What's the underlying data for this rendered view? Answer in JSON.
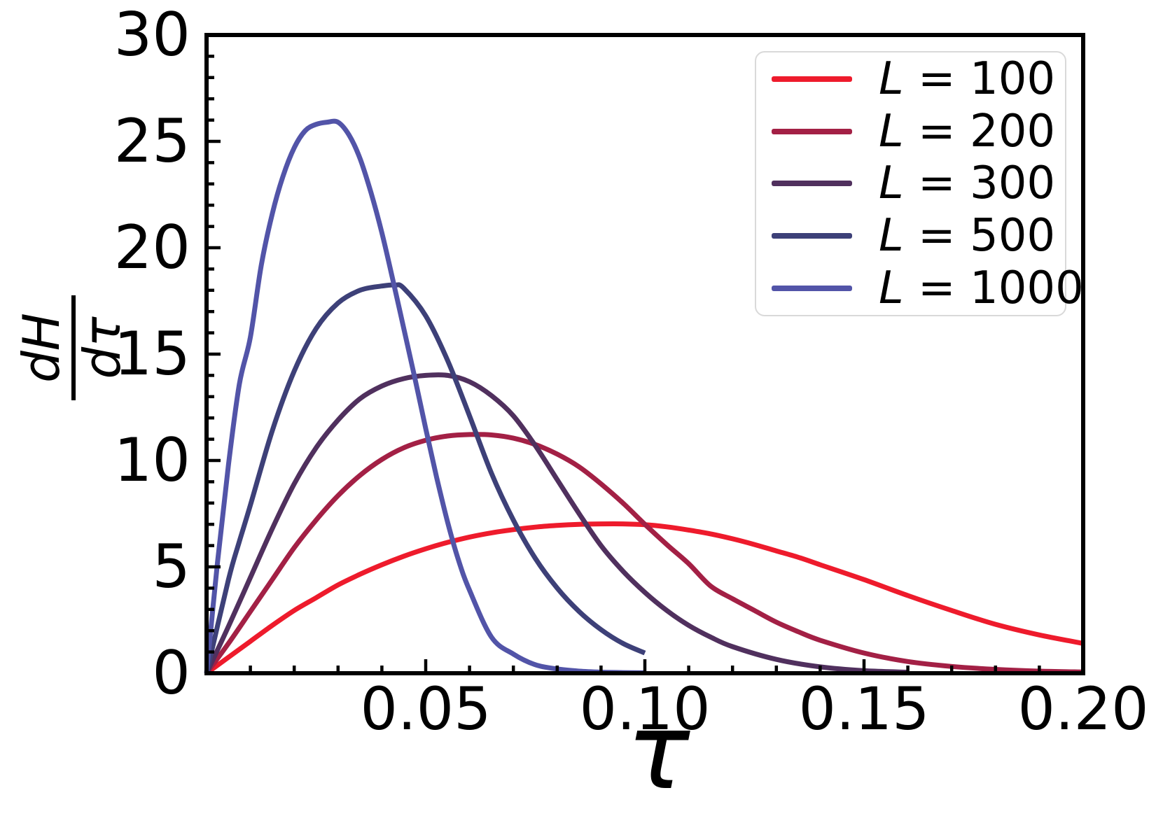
{
  "chart_data": {
    "type": "line",
    "title": "",
    "xlabel": "τ",
    "ylabel_numerator": "dH",
    "ylabel_denominator": "dτ",
    "xlim": [
      0,
      0.2
    ],
    "ylim": [
      0,
      30
    ],
    "grid": false,
    "legend_position": "upper right",
    "axis_color": "#000000",
    "legend_border_color": "#d9d9d9",
    "x_ticks": {
      "major": [
        {
          "v": 0.05,
          "label": "0.05"
        },
        {
          "v": 0.1,
          "label": "0.10"
        },
        {
          "v": 0.15,
          "label": "0.15"
        },
        {
          "v": 0.2,
          "label": "0.20"
        }
      ],
      "minor_step": 0.01
    },
    "y_ticks": {
      "major": [
        {
          "v": 0,
          "label": "0"
        },
        {
          "v": 5,
          "label": "5"
        },
        {
          "v": 10,
          "label": "10"
        },
        {
          "v": 15,
          "label": "15"
        },
        {
          "v": 20,
          "label": "20"
        },
        {
          "v": 25,
          "label": "25"
        },
        {
          "v": 30,
          "label": "30"
        }
      ],
      "minor_step": 1
    },
    "series": [
      {
        "name": "L = 100",
        "label_var": "L",
        "label_rest": " = 100",
        "color": "#ee1b2c",
        "peak": [
          0.095,
          7.0
        ],
        "points": [
          [
            0,
            0
          ],
          [
            0.005,
            0.75
          ],
          [
            0.01,
            1.5
          ],
          [
            0.015,
            2.25
          ],
          [
            0.02,
            2.95
          ],
          [
            0.025,
            3.55
          ],
          [
            0.03,
            4.15
          ],
          [
            0.035,
            4.65
          ],
          [
            0.04,
            5.1
          ],
          [
            0.045,
            5.5
          ],
          [
            0.05,
            5.85
          ],
          [
            0.055,
            6.15
          ],
          [
            0.06,
            6.4
          ],
          [
            0.065,
            6.6
          ],
          [
            0.07,
            6.75
          ],
          [
            0.075,
            6.87
          ],
          [
            0.08,
            6.95
          ],
          [
            0.085,
            7.0
          ],
          [
            0.09,
            7.02
          ],
          [
            0.095,
            7.02
          ],
          [
            0.1,
            6.98
          ],
          [
            0.105,
            6.88
          ],
          [
            0.11,
            6.73
          ],
          [
            0.115,
            6.55
          ],
          [
            0.12,
            6.32
          ],
          [
            0.125,
            6.05
          ],
          [
            0.13,
            5.75
          ],
          [
            0.135,
            5.45
          ],
          [
            0.14,
            5.1
          ],
          [
            0.15,
            4.4
          ],
          [
            0.16,
            3.65
          ],
          [
            0.17,
            2.95
          ],
          [
            0.18,
            2.3
          ],
          [
            0.19,
            1.8
          ],
          [
            0.2,
            1.4
          ]
        ]
      },
      {
        "name": "L = 200",
        "label_var": "L",
        "label_rest": " = 200",
        "color": "#a32045",
        "peak": [
          0.067,
          11.2
        ],
        "points": [
          [
            0,
            0
          ],
          [
            0.005,
            1.4
          ],
          [
            0.01,
            2.9
          ],
          [
            0.015,
            4.4
          ],
          [
            0.02,
            5.9
          ],
          [
            0.025,
            7.2
          ],
          [
            0.03,
            8.35
          ],
          [
            0.035,
            9.3
          ],
          [
            0.04,
            10.05
          ],
          [
            0.045,
            10.6
          ],
          [
            0.05,
            10.95
          ],
          [
            0.055,
            11.15
          ],
          [
            0.06,
            11.22
          ],
          [
            0.065,
            11.2
          ],
          [
            0.07,
            11.05
          ],
          [
            0.075,
            10.75
          ],
          [
            0.08,
            10.3
          ],
          [
            0.085,
            9.7
          ],
          [
            0.09,
            8.9
          ],
          [
            0.095,
            8.0
          ],
          [
            0.1,
            7.0
          ],
          [
            0.105,
            6.05
          ],
          [
            0.11,
            5.15
          ],
          [
            0.115,
            4.1
          ],
          [
            0.12,
            3.5
          ],
          [
            0.125,
            2.95
          ],
          [
            0.13,
            2.4
          ],
          [
            0.135,
            1.95
          ],
          [
            0.14,
            1.55
          ],
          [
            0.15,
            0.95
          ],
          [
            0.16,
            0.55
          ],
          [
            0.17,
            0.32
          ],
          [
            0.18,
            0.18
          ],
          [
            0.19,
            0.1
          ],
          [
            0.2,
            0.06
          ]
        ]
      },
      {
        "name": "L = 300",
        "label_var": "L",
        "label_rest": " = 300",
        "color": "#50305e",
        "peak": [
          0.054,
          14.0
        ],
        "points": [
          [
            0,
            0
          ],
          [
            0.005,
            2.2
          ],
          [
            0.01,
            4.5
          ],
          [
            0.015,
            6.8
          ],
          [
            0.02,
            8.9
          ],
          [
            0.025,
            10.6
          ],
          [
            0.03,
            11.9
          ],
          [
            0.035,
            12.9
          ],
          [
            0.04,
            13.5
          ],
          [
            0.045,
            13.85
          ],
          [
            0.05,
            14.0
          ],
          [
            0.055,
            14.0
          ],
          [
            0.06,
            13.7
          ],
          [
            0.065,
            13.05
          ],
          [
            0.07,
            12.1
          ],
          [
            0.075,
            10.7
          ],
          [
            0.08,
            9.1
          ],
          [
            0.085,
            7.5
          ],
          [
            0.09,
            6.0
          ],
          [
            0.095,
            4.8
          ],
          [
            0.1,
            3.8
          ],
          [
            0.105,
            2.95
          ],
          [
            0.11,
            2.25
          ],
          [
            0.115,
            1.7
          ],
          [
            0.12,
            1.25
          ],
          [
            0.13,
            0.65
          ],
          [
            0.14,
            0.3
          ],
          [
            0.15,
            0.12
          ],
          [
            0.16,
            0.05
          ]
        ]
      },
      {
        "name": "L = 500",
        "label_var": "L",
        "label_rest": " = 500",
        "color": "#3d4078",
        "peak": [
          0.043,
          18.2
        ],
        "points": [
          [
            0,
            0
          ],
          [
            0.005,
            4.4
          ],
          [
            0.0075,
            6.2
          ],
          [
            0.01,
            7.9
          ],
          [
            0.015,
            11.4
          ],
          [
            0.02,
            14.2
          ],
          [
            0.025,
            16.2
          ],
          [
            0.03,
            17.4
          ],
          [
            0.035,
            18.0
          ],
          [
            0.04,
            18.2
          ],
          [
            0.043,
            18.25
          ],
          [
            0.045,
            18.1
          ],
          [
            0.05,
            16.8
          ],
          [
            0.055,
            14.7
          ],
          [
            0.06,
            12.1
          ],
          [
            0.065,
            9.4
          ],
          [
            0.07,
            7.2
          ],
          [
            0.075,
            5.4
          ],
          [
            0.08,
            4.0
          ],
          [
            0.085,
            2.9
          ],
          [
            0.09,
            2.05
          ],
          [
            0.095,
            1.4
          ],
          [
            0.1,
            0.95
          ]
        ]
      },
      {
        "name": "L = 1000",
        "label_var": "L",
        "label_rest": " = 1000",
        "color": "#5254a8",
        "peak": [
          0.03,
          25.9
        ],
        "points": [
          [
            0,
            0
          ],
          [
            0.0025,
            5.2
          ],
          [
            0.005,
            9.8
          ],
          [
            0.0075,
            13.6
          ],
          [
            0.01,
            15.8
          ],
          [
            0.0125,
            19.2
          ],
          [
            0.015,
            21.6
          ],
          [
            0.0175,
            23.4
          ],
          [
            0.02,
            24.7
          ],
          [
            0.0225,
            25.5
          ],
          [
            0.025,
            25.8
          ],
          [
            0.0275,
            25.9
          ],
          [
            0.03,
            25.9
          ],
          [
            0.0325,
            25.3
          ],
          [
            0.035,
            24.2
          ],
          [
            0.0375,
            22.6
          ],
          [
            0.04,
            20.7
          ],
          [
            0.0425,
            18.5
          ],
          [
            0.045,
            16.2
          ],
          [
            0.0475,
            13.9
          ],
          [
            0.05,
            11.5
          ],
          [
            0.0525,
            9.2
          ],
          [
            0.055,
            7.1
          ],
          [
            0.0575,
            5.3
          ],
          [
            0.06,
            3.9
          ],
          [
            0.065,
            1.7
          ],
          [
            0.07,
            0.9
          ],
          [
            0.075,
            0.4
          ],
          [
            0.08,
            0.2
          ],
          [
            0.085,
            0.1
          ],
          [
            0.09,
            0.05
          ],
          [
            0.095,
            0.03
          ],
          [
            0.1,
            0.02
          ]
        ]
      }
    ]
  }
}
